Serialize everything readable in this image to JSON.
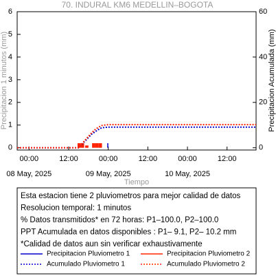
{
  "chart_data": {
    "type": "combo",
    "title": "70. INDURAL KM6 MEDELLIN–BOGOTA",
    "y_label": "Precipitacion 1 minutos (mm)",
    "y2_label": "Precipitacion Acumulada (mm)",
    "x_label": "Tiempo",
    "xlim": [
      -3.6,
      68.8
    ],
    "xticks": [
      {
        "value": 0,
        "label": "00:00"
      },
      {
        "value": 12,
        "label": "12:00"
      },
      {
        "value": 24,
        "label": "00:00"
      },
      {
        "value": 36,
        "label": "12:00"
      },
      {
        "value": 48,
        "label": "00:00"
      },
      {
        "value": 60,
        "label": "12:00"
      }
    ],
    "xticks_dates": [
      {
        "value": 0,
        "label": "08 May, 2025"
      },
      {
        "value": 24,
        "label": "09 May, 2025"
      },
      {
        "value": 48,
        "label": "10 May, 2025"
      }
    ],
    "ylim": [
      -0.1,
      6
    ],
    "yticks": [
      0,
      1,
      2,
      3,
      4,
      5,
      6
    ],
    "y2lim": [
      -1,
      60
    ],
    "y2ticks": [
      0,
      20,
      40,
      60
    ],
    "series": [
      {
        "name": "Precipitacion Pluviometro 1",
        "color": "#0000cc",
        "type": "bar",
        "style": "solid",
        "x": [
          24.2
        ],
        "values": [
          0.2
        ]
      },
      {
        "name": "Precipitacion Pluviometro 2",
        "color": "#ff2200",
        "type": "bar",
        "style": "solid",
        "x": [
          15.2,
          16.2,
          17.5,
          19.6,
          20.6,
          21.6
        ],
        "values": [
          0.2,
          0.2,
          0.1,
          0.2,
          0.2,
          0.2
        ]
      },
      {
        "name": "Acumulado Pluviometro 1",
        "color": "#0000cc",
        "type": "line",
        "style": "dotted",
        "axis": "y2",
        "x": [
          -3.6,
          15,
          16,
          17,
          18,
          19,
          20,
          21,
          22,
          24,
          68.8
        ],
        "values": [
          0,
          0,
          1.5,
          3,
          4.5,
          6,
          7,
          8,
          8.8,
          9.1,
          9.1
        ]
      },
      {
        "name": "Acumulado Pluviometro 2",
        "color": "#ff2200",
        "type": "line",
        "style": "dotted",
        "axis": "y2",
        "x": [
          -3.6,
          15,
          16,
          17,
          18,
          19,
          20,
          21,
          22,
          24,
          68.8
        ],
        "values": [
          0,
          0,
          1.7,
          3.4,
          5,
          6.6,
          8,
          9,
          9.8,
          10.2,
          10.2
        ]
      }
    ],
    "notes": [
      "Esta estacion tiene 2 pluviometros para mejor calidad de datos",
      "Resolucion temporal: 1 minutos",
      "% Datos transmitidos* en 72 horas: P1–100.0, P2–100.0",
      "PPT Acumulada en datos disponibles : P1–  9.1, P2– 10.2 mm",
      "*Calidad de datos aun sin verificar exhaustivamente"
    ]
  }
}
